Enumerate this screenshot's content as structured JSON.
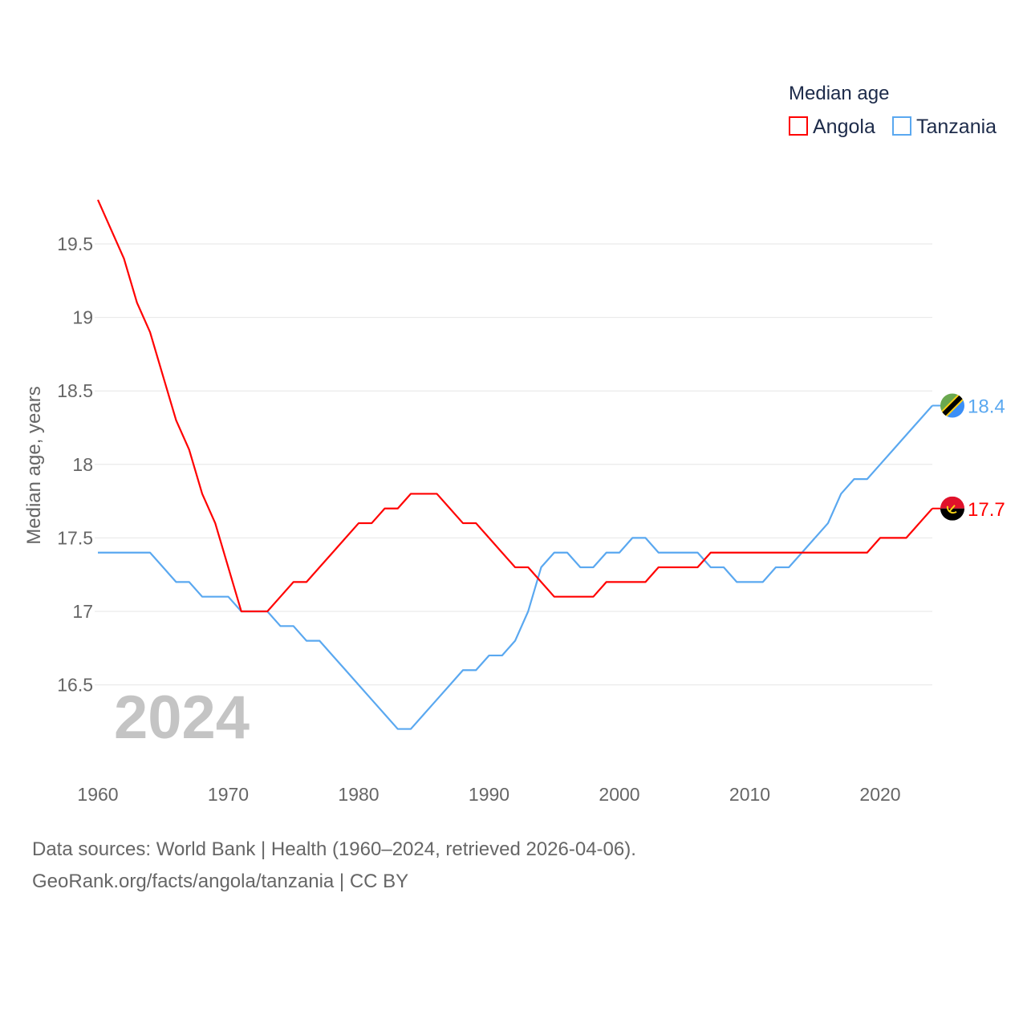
{
  "chart_data": {
    "type": "line",
    "title": "",
    "xlabel": "",
    "ylabel": "Median age, years",
    "xlim": [
      1960,
      2024
    ],
    "ylim": [
      16.0,
      19.8
    ],
    "x_ticks": [
      "1960",
      "1970",
      "1980",
      "1990",
      "2000",
      "2010",
      "2020"
    ],
    "y_ticks": [
      "16.5",
      "17",
      "17.5",
      "18",
      "18.5",
      "19",
      "19.5"
    ],
    "grid": true,
    "legend": {
      "title": "Median age",
      "placement": "top-right"
    },
    "year_label": "2024",
    "x": [
      1960,
      1961,
      1962,
      1963,
      1964,
      1965,
      1966,
      1967,
      1968,
      1969,
      1970,
      1971,
      1972,
      1973,
      1974,
      1975,
      1976,
      1977,
      1978,
      1979,
      1980,
      1981,
      1982,
      1983,
      1984,
      1985,
      1986,
      1987,
      1988,
      1989,
      1990,
      1991,
      1992,
      1993,
      1994,
      1995,
      1996,
      1997,
      1998,
      1999,
      2000,
      2001,
      2002,
      2003,
      2004,
      2005,
      2006,
      2007,
      2008,
      2009,
      2010,
      2011,
      2012,
      2013,
      2014,
      2015,
      2016,
      2017,
      2018,
      2019,
      2020,
      2021,
      2022,
      2023,
      2024
    ],
    "series": [
      {
        "name": "Angola",
        "color": "#ff0000",
        "end_label": "17.7",
        "values": [
          19.8,
          19.6,
          19.4,
          19.1,
          18.9,
          18.6,
          18.3,
          18.1,
          17.8,
          17.6,
          17.3,
          17.0,
          17.0,
          17.0,
          17.1,
          17.2,
          17.2,
          17.3,
          17.4,
          17.5,
          17.6,
          17.6,
          17.7,
          17.7,
          17.8,
          17.8,
          17.8,
          17.7,
          17.6,
          17.6,
          17.5,
          17.4,
          17.3,
          17.3,
          17.2,
          17.1,
          17.1,
          17.1,
          17.1,
          17.2,
          17.2,
          17.2,
          17.2,
          17.3,
          17.3,
          17.3,
          17.3,
          17.4,
          17.4,
          17.4,
          17.4,
          17.4,
          17.4,
          17.4,
          17.4,
          17.4,
          17.4,
          17.4,
          17.4,
          17.4,
          17.5,
          17.5,
          17.5,
          17.6,
          17.7
        ]
      },
      {
        "name": "Tanzania",
        "color": "#5aa8f0",
        "end_label": "18.4",
        "values": [
          17.4,
          17.4,
          17.4,
          17.4,
          17.4,
          17.3,
          17.2,
          17.2,
          17.1,
          17.1,
          17.1,
          17.0,
          17.0,
          17.0,
          16.9,
          16.9,
          16.8,
          16.8,
          16.7,
          16.6,
          16.5,
          16.4,
          16.3,
          16.2,
          16.2,
          16.3,
          16.4,
          16.5,
          16.6,
          16.6,
          16.7,
          16.7,
          16.8,
          17.0,
          17.3,
          17.4,
          17.4,
          17.3,
          17.3,
          17.4,
          17.4,
          17.5,
          17.5,
          17.4,
          17.4,
          17.4,
          17.4,
          17.3,
          17.3,
          17.2,
          17.2,
          17.2,
          17.3,
          17.3,
          17.4,
          17.5,
          17.6,
          17.8,
          17.9,
          17.9,
          18.0,
          18.1,
          18.2,
          18.3,
          18.4
        ]
      }
    ]
  },
  "footer": {
    "sources": "Data sources: World Bank | Health (1960–2024, retrieved 2026-04-06).",
    "credit": "GeoRank.org/facts/angola/tanzania | CC BY"
  }
}
